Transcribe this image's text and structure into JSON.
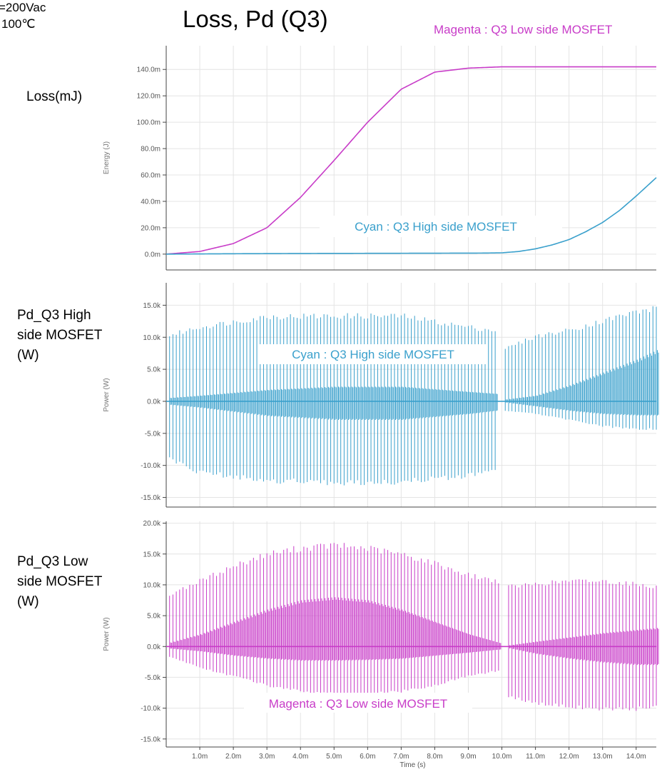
{
  "header": {
    "title": "Loss, Pd (Q3)",
    "condition_line1": "=200Vac",
    "condition_line2": "100℃",
    "top_legend": "Magenta : Q3 Low side MOSFET"
  },
  "colors": {
    "magenta": "#c83cc8",
    "cyan": "#3aa0cc",
    "grid": "#e4e4e4",
    "axis": "#444444"
  },
  "chart_data": [
    {
      "type": "line",
      "panel_label": "Loss(mJ)",
      "ylabel": "Energy (J)",
      "ylim": [
        -0.012,
        0.158
      ],
      "yticks": [
        0,
        0.02,
        0.04,
        0.06,
        0.08,
        0.1,
        0.12,
        0.14
      ],
      "ytick_labels": [
        "0.0m",
        "20.0m",
        "40.0m",
        "60.0m",
        "80.0m",
        "100.0m",
        "120.0m",
        "140.0m"
      ],
      "annotation": "Cyan : Q3 High side MOSFET",
      "series": [
        {
          "name": "Q3 Low side MOSFET",
          "color": "#c83cc8",
          "x": [
            0,
            0.001,
            0.002,
            0.003,
            0.004,
            0.005,
            0.006,
            0.007,
            0.008,
            0.009,
            0.01,
            0.011,
            0.012,
            0.013,
            0.014,
            0.0146
          ],
          "y": [
            0,
            0.002,
            0.008,
            0.02,
            0.043,
            0.071,
            0.1,
            0.125,
            0.138,
            0.141,
            0.142,
            0.142,
            0.142,
            0.142,
            0.142,
            0.142
          ]
        },
        {
          "name": "Q3 High side MOSFET",
          "color": "#3aa0cc",
          "x": [
            0,
            0.002,
            0.004,
            0.006,
            0.008,
            0.0095,
            0.01,
            0.0105,
            0.011,
            0.0115,
            0.012,
            0.0125,
            0.013,
            0.0135,
            0.014,
            0.0146
          ],
          "y": [
            0,
            0.0003,
            0.0005,
            0.0006,
            0.0007,
            0.0008,
            0.001,
            0.002,
            0.004,
            0.007,
            0.011,
            0.017,
            0.024,
            0.033,
            0.044,
            0.058
          ]
        }
      ]
    },
    {
      "type": "line",
      "panel_label": "Pd_Q3 High side MOSFET (W)",
      "ylabel": "Power (W)",
      "ylim": [
        -16500,
        18500
      ],
      "yticks": [
        -15000,
        -10000,
        -5000,
        0,
        5000,
        10000,
        15000
      ],
      "ytick_labels": [
        "-15.0k",
        "-10.0k",
        "-5.0k",
        "0.0k",
        "5.0k",
        "10.0k",
        "15.0k"
      ],
      "annotation": "Cyan : Q3 High side MOSFET",
      "series": [
        {
          "name": "Q3 High side MOSFET",
          "color": "#3aa0cc",
          "segments": [
            {
              "x_start": 0.0001,
              "x_end": 0.0098
            },
            {
              "x_start": 0.0101,
              "x_end": 0.0146
            }
          ],
          "pulse_period": 0.0001,
          "envelope_x": [
            0,
            0.001,
            0.003,
            0.005,
            0.007,
            0.009,
            0.0098,
            0.0101,
            0.011,
            0.012,
            0.013,
            0.014,
            0.0146
          ],
          "pos_peak": [
            10500,
            12000,
            13700,
            13800,
            13800,
            12000,
            11500,
            8500,
            10500,
            11500,
            13000,
            14500,
            15000
          ],
          "neg_peak": [
            -9000,
            -11500,
            -12800,
            -13200,
            -13000,
            -12000,
            -11000,
            -1500,
            -2000,
            -3000,
            -4000,
            -4500,
            -4500
          ],
          "pos_body": [
            500,
            900,
            1800,
            2300,
            2300,
            1500,
            1200,
            300,
            900,
            2500,
            4500,
            6500,
            8000
          ],
          "neg_body": [
            -500,
            -1000,
            -2300,
            -2900,
            -2900,
            -2000,
            -1500,
            -200,
            -800,
            -1500,
            -2000,
            -2200,
            -2200
          ]
        }
      ]
    },
    {
      "type": "line",
      "panel_label": "Pd_Q3 Low side MOSFET (W)",
      "ylabel": "Power (W)",
      "xlabel": "Time (s)",
      "ylim": [
        -16300,
        20300
      ],
      "yticks": [
        -15000,
        -10000,
        -5000,
        0,
        5000,
        10000,
        15000,
        20000
      ],
      "ytick_labels": [
        "-15.0k",
        "-10.0k",
        "-5.0k",
        "0.0k",
        "5.0k",
        "10.0k",
        "15.0k",
        "20.0k"
      ],
      "xticks": [
        0.001,
        0.002,
        0.003,
        0.004,
        0.005,
        0.006,
        0.007,
        0.008,
        0.009,
        0.01,
        0.011,
        0.012,
        0.013,
        0.014
      ],
      "xtick_labels": [
        "1.0m",
        "2.0m",
        "3.0m",
        "4.0m",
        "5.0m",
        "6.0m",
        "7.0m",
        "8.0m",
        "9.0m",
        "10.0m",
        "11.0m",
        "12.0m",
        "13.0m",
        "14.0m"
      ],
      "xlim": [
        0,
        0.0146
      ],
      "annotation": "Magenta : Q3 Low side MOSFET",
      "series": [
        {
          "name": "Q3 Low side MOSFET",
          "color": "#c83cc8",
          "segments": [
            {
              "x_start": 0.0001,
              "x_end": 0.0099
            },
            {
              "x_start": 0.0102,
              "x_end": 0.0146
            }
          ],
          "pulse_period": 0.0001,
          "envelope_x": [
            0,
            0.001,
            0.002,
            0.003,
            0.004,
            0.005,
            0.006,
            0.007,
            0.008,
            0.009,
            0.0099,
            0.0102,
            0.011,
            0.012,
            0.013,
            0.014,
            0.0146
          ],
          "pos_peak": [
            8500,
            11000,
            13500,
            15500,
            16500,
            17000,
            16500,
            15500,
            14000,
            12000,
            11000,
            10000,
            10500,
            11000,
            11000,
            10500,
            10000
          ],
          "neg_peak": [
            -1500,
            -3500,
            -5000,
            -6500,
            -7500,
            -8000,
            -8000,
            -7500,
            -6500,
            -5000,
            -4000,
            -8500,
            -9500,
            -10000,
            -10500,
            -10500,
            -10000
          ],
          "pos_body": [
            500,
            2000,
            4000,
            6000,
            7500,
            8000,
            7500,
            6000,
            4000,
            2000,
            600,
            200,
            800,
            1500,
            2200,
            2700,
            3000
          ],
          "neg_body": [
            -300,
            -800,
            -1500,
            -2000,
            -2300,
            -2300,
            -2200,
            -2000,
            -1500,
            -1000,
            -500,
            -300,
            -1200,
            -2000,
            -2600,
            -3000,
            -3000
          ]
        }
      ]
    }
  ]
}
